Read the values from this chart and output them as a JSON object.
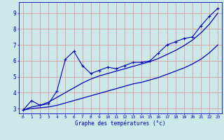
{
  "xlabel": "Graphe des températures (°c)",
  "background_color": "#cce8e8",
  "grid_color": "#d4a0a0",
  "line_color": "#0000bb",
  "x_data": [
    0,
    1,
    2,
    3,
    4,
    5,
    6,
    7,
    8,
    9,
    10,
    11,
    12,
    13,
    14,
    15,
    16,
    17,
    18,
    19,
    20,
    21,
    22,
    23
  ],
  "y_main": [
    2.9,
    3.5,
    3.2,
    3.3,
    4.1,
    6.1,
    6.6,
    5.7,
    5.2,
    5.4,
    5.6,
    5.5,
    5.7,
    5.9,
    5.9,
    6.0,
    6.5,
    7.0,
    7.2,
    7.4,
    7.5,
    8.2,
    8.8,
    9.3
  ],
  "y_low": [
    2.9,
    3.0,
    3.05,
    3.1,
    3.2,
    3.35,
    3.5,
    3.65,
    3.8,
    3.95,
    4.1,
    4.25,
    4.4,
    4.55,
    4.65,
    4.8,
    4.95,
    5.15,
    5.35,
    5.55,
    5.8,
    6.1,
    6.5,
    7.0
  ],
  "y_high": [
    2.9,
    3.1,
    3.2,
    3.4,
    3.7,
    4.0,
    4.3,
    4.6,
    4.85,
    5.05,
    5.2,
    5.35,
    5.5,
    5.65,
    5.8,
    5.95,
    6.15,
    6.4,
    6.65,
    6.95,
    7.3,
    7.75,
    8.3,
    9.0
  ],
  "ylim": [
    2.7,
    9.7
  ],
  "xlim": [
    -0.5,
    23.5
  ],
  "yticks": [
    3,
    4,
    5,
    6,
    7,
    8,
    9
  ],
  "xticks": [
    0,
    1,
    2,
    3,
    4,
    5,
    6,
    7,
    8,
    9,
    10,
    11,
    12,
    13,
    14,
    15,
    16,
    17,
    18,
    19,
    20,
    21,
    22,
    23
  ]
}
